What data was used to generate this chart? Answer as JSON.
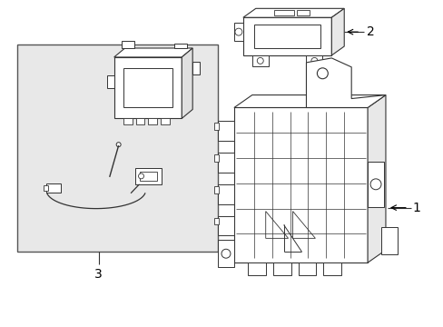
{
  "background_color": "#ffffff",
  "line_color": "#333333",
  "box_bg": "#e8e8e8",
  "fig_width": 4.89,
  "fig_height": 3.6,
  "dpi": 100,
  "label_1": "1",
  "label_2": "2",
  "label_3": "3"
}
